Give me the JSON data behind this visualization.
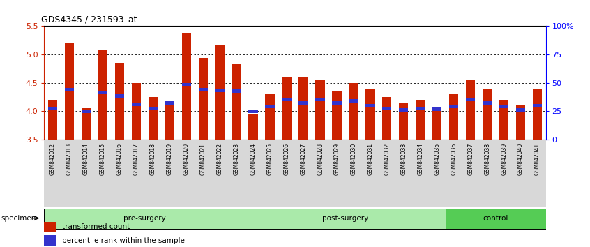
{
  "title": "GDS4345 / 231593_at",
  "samples": [
    "GSM842012",
    "GSM842013",
    "GSM842014",
    "GSM842015",
    "GSM842016",
    "GSM842017",
    "GSM842018",
    "GSM842019",
    "GSM842020",
    "GSM842021",
    "GSM842022",
    "GSM842023",
    "GSM842024",
    "GSM842025",
    "GSM842026",
    "GSM842027",
    "GSM842028",
    "GSM842029",
    "GSM842030",
    "GSM842031",
    "GSM842032",
    "GSM842033",
    "GSM842034",
    "GSM842035",
    "GSM842036",
    "GSM842037",
    "GSM842038",
    "GSM842039",
    "GSM842040",
    "GSM842041"
  ],
  "red_values": [
    4.2,
    5.2,
    4.05,
    5.08,
    4.85,
    4.5,
    4.25,
    4.12,
    5.38,
    4.94,
    5.16,
    4.83,
    3.95,
    4.3,
    4.6,
    4.6,
    4.55,
    4.35,
    4.5,
    4.38,
    4.25,
    4.15,
    4.2,
    4.05,
    4.3,
    4.55,
    4.4,
    4.2,
    4.1,
    4.4
  ],
  "blue_values": [
    4.05,
    4.38,
    4.0,
    4.33,
    4.27,
    4.12,
    4.05,
    4.15,
    4.47,
    4.38,
    4.36,
    4.35,
    4.0,
    4.08,
    4.2,
    4.15,
    4.2,
    4.15,
    4.18,
    4.1,
    4.05,
    4.02,
    4.05,
    4.03,
    4.08,
    4.2,
    4.15,
    4.08,
    4.02,
    4.1
  ],
  "ylim": [
    3.5,
    5.5
  ],
  "yticks": [
    3.5,
    4.0,
    4.5,
    5.0,
    5.5
  ],
  "right_yticks_pct": [
    0,
    25,
    50,
    75,
    100
  ],
  "right_ytick_labels": [
    "0",
    "25",
    "50",
    "75",
    "100%"
  ],
  "bar_color": "#cc2200",
  "blue_color": "#3333cc",
  "bar_width": 0.55,
  "groups": [
    {
      "label": "pre-surgery",
      "start": 0,
      "end": 12,
      "light": true
    },
    {
      "label": "post-surgery",
      "start": 12,
      "end": 24,
      "light": true
    },
    {
      "label": "control",
      "start": 24,
      "end": 30,
      "light": false
    }
  ],
  "group_color_light": "#aaeaaa",
  "group_color_dark": "#55cc55",
  "tick_area_color": "#d8d8d8",
  "legend_items": [
    "transformed count",
    "percentile rank within the sample"
  ]
}
